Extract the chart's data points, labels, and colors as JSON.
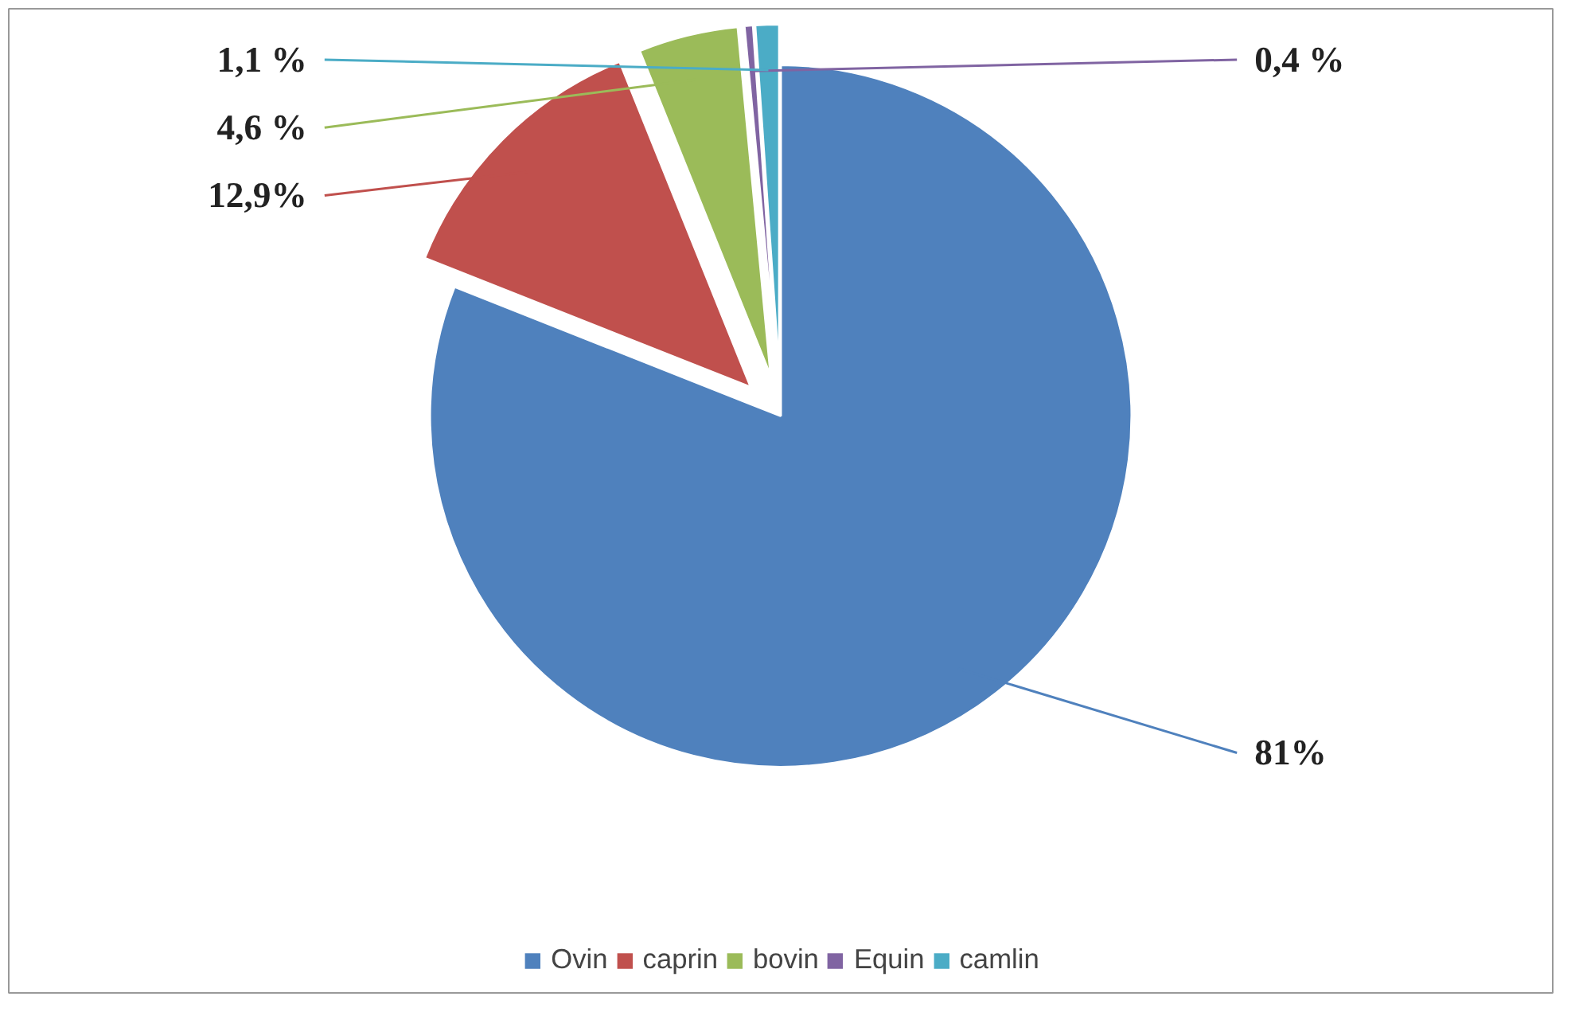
{
  "chart_data": {
    "type": "pie",
    "categories": [
      "Ovin",
      "caprin",
      "bovin",
      "Equin",
      "camlin"
    ],
    "values": [
      81,
      12.9,
      4.6,
      0.4,
      1.1
    ],
    "colors": [
      "#4f81bd",
      "#c0504d",
      "#9bbb59",
      "#8064a2",
      "#4bacc6"
    ],
    "value_labels": [
      "81%",
      "12,9%",
      "4,6 %",
      "0,4 %",
      "1,1 %"
    ],
    "legend": "bottom"
  }
}
